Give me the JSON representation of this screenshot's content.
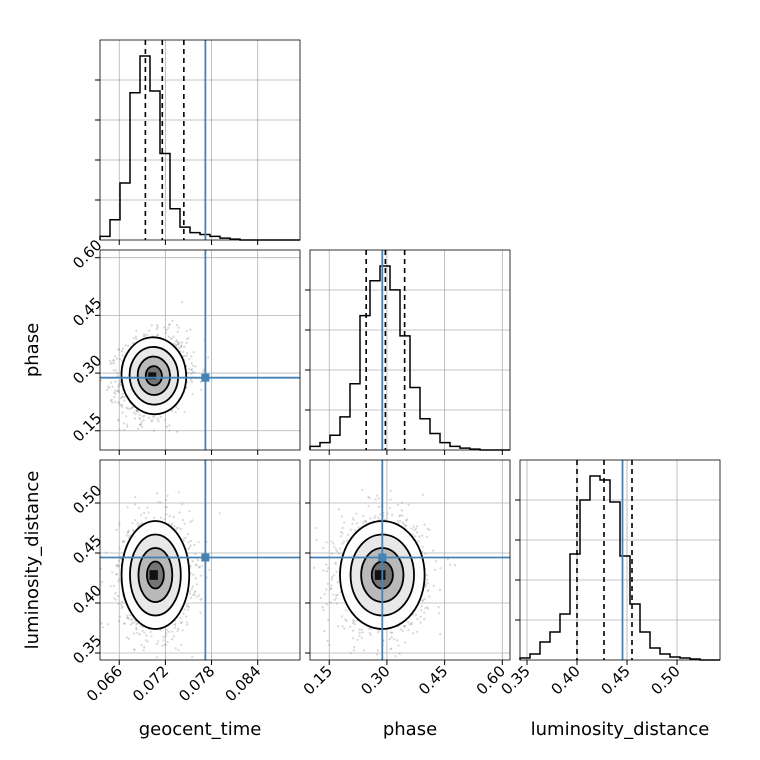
{
  "colors": {
    "truth": "#4682b4",
    "hist": "#000000",
    "grid": "#b0b0b0",
    "scatter": "#8c8c8c"
  },
  "chart_data": {
    "type": "corner",
    "grid": true,
    "parameters": [
      {
        "name": "geocent_time",
        "label": "geocent_time",
        "range": [
          0.0635,
          0.0895
        ],
        "ticks": [
          0.066,
          0.072,
          0.078,
          0.084
        ],
        "tick_labels": [
          "0.066",
          "0.072",
          "0.078",
          "0.084"
        ],
        "quantiles": [
          0.0694,
          0.0716,
          0.0744
        ],
        "truth": 0.0772,
        "histogram": {
          "edges_start": 0.0635,
          "bin_width": 0.0013,
          "heights": [
            2,
            11,
            31,
            80,
            100,
            81,
            47,
            17,
            7,
            4,
            3,
            2,
            1,
            0.5,
            0,
            0,
            0,
            0,
            0,
            0
          ]
        }
      },
      {
        "name": "phase",
        "label": "phase",
        "range": [
          0.1,
          0.62
        ],
        "ticks": [
          0.15,
          0.3,
          0.45,
          0.6
        ],
        "tick_labels": [
          "0.15",
          "0.30",
          "0.45",
          "0.60"
        ],
        "quantiles": [
          0.246,
          0.296,
          0.346
        ],
        "truth": 0.288,
        "histogram": {
          "edges_start": 0.1,
          "bin_width": 0.026,
          "heights": [
            2,
            4,
            8,
            18,
            36,
            73,
            92,
            100,
            87,
            62,
            34,
            17,
            9,
            4,
            2,
            1,
            0.5,
            0,
            0,
            0
          ]
        }
      },
      {
        "name": "luminosity_distance",
        "label": "luminosity_distance",
        "range": [
          0.343,
          0.543
        ],
        "ticks": [
          0.35,
          0.4,
          0.45,
          0.5
        ],
        "tick_labels": [
          "0.35",
          "0.40",
          "0.45",
          "0.50"
        ],
        "quantiles": [
          0.4,
          0.427,
          0.455
        ],
        "truth": 0.4455,
        "histogram": {
          "edges_start": 0.343,
          "bin_width": 0.01,
          "heights": [
            1,
            3,
            9,
            14,
            23,
            53,
            80,
            92,
            90,
            79,
            52,
            28,
            14,
            6,
            3,
            1.5,
            1,
            0.5,
            0,
            0
          ]
        }
      }
    ],
    "pairs": [
      {
        "x": "geocent_time",
        "y": "phase",
        "center": [
          0.0705,
          0.293
        ],
        "sigma": [
          0.0021,
          0.05
        ],
        "corr": 0.15
      },
      {
        "x": "geocent_time",
        "y": "luminosity_distance",
        "center": [
          0.0707,
          0.428
        ],
        "sigma": [
          0.0022,
          0.027
        ],
        "corr": 0.0
      },
      {
        "x": "phase",
        "y": "luminosity_distance",
        "center": [
          0.288,
          0.428
        ],
        "sigma": [
          0.055,
          0.027
        ],
        "corr": 0.0
      }
    ],
    "contour_levels_sigma": [
      0.5,
      1.0,
      1.5,
      2.0
    ]
  }
}
